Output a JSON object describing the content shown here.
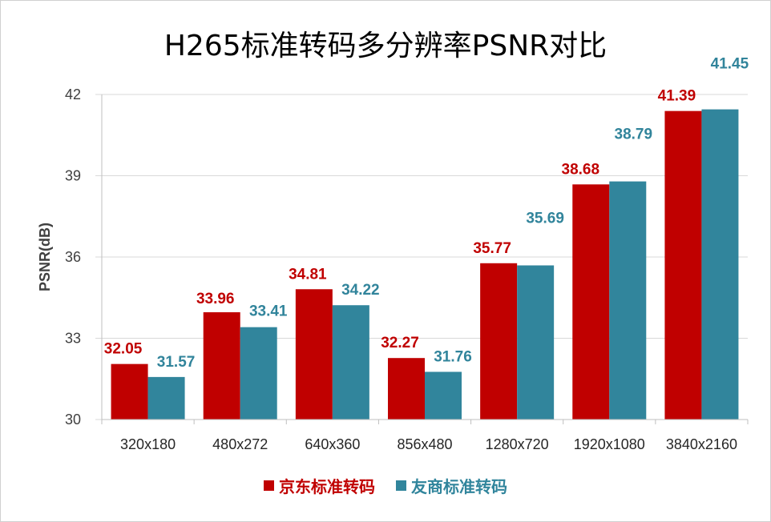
{
  "chart_data": {
    "type": "bar",
    "title": "H265标准转码多分辨率PSNR对比",
    "ylabel": "PSNR(dB)",
    "xlabel": "",
    "ylim": [
      30,
      42
    ],
    "yticks": [
      30,
      33,
      36,
      39,
      42
    ],
    "categories": [
      "320x180",
      "480x272",
      "640x360",
      "856x480",
      "1280x720",
      "1920x1080",
      "3840x2160"
    ],
    "series": [
      {
        "name": "京东标准转码",
        "color": "#c00000",
        "values": [
          32.05,
          33.96,
          34.81,
          32.27,
          35.77,
          38.68,
          41.39
        ]
      },
      {
        "name": "友商标准转码",
        "color": "#31859c",
        "values": [
          31.57,
          33.41,
          34.22,
          31.76,
          35.69,
          38.79,
          41.45
        ]
      }
    ],
    "grid": true,
    "legend_position": "bottom"
  }
}
